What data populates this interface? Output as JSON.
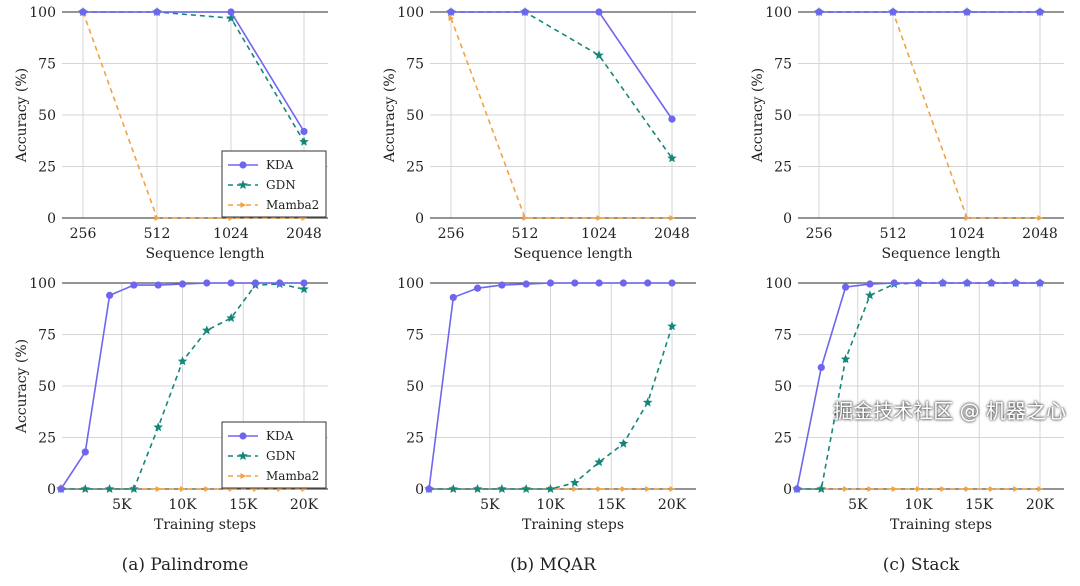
{
  "colors": {
    "KDA": "#6f66f0",
    "GDN": "#15877a",
    "Mamba2": "#f2a244",
    "grid": "#d6d6d6",
    "axis": "#555555"
  },
  "watermark": "掘金技术社区 @ 机器之心",
  "chart_data": [
    {
      "type": "line",
      "panel": "Palindrome",
      "row": "top",
      "xlabel": "Sequence length",
      "ylabel": "Accuracy (%)",
      "categories": [
        "256",
        "512",
        "1024",
        "2048"
      ],
      "yticks": [
        "0",
        "25",
        "50",
        "75",
        "100"
      ],
      "ylim": [
        0,
        100
      ],
      "legend": "bottom-right",
      "series": [
        {
          "name": "KDA",
          "values": [
            100,
            100,
            100,
            42
          ]
        },
        {
          "name": "GDN",
          "values": [
            100,
            100,
            97,
            37
          ]
        },
        {
          "name": "Mamba2",
          "values": [
            100,
            0,
            0,
            0
          ]
        }
      ]
    },
    {
      "type": "line",
      "panel": "MQAR",
      "row": "top",
      "xlabel": "Sequence length",
      "ylabel": "Accuracy (%)",
      "categories": [
        "256",
        "512",
        "1024",
        "2048"
      ],
      "yticks": [
        "0",
        "25",
        "50",
        "75",
        "100"
      ],
      "ylim": [
        0,
        100
      ],
      "series": [
        {
          "name": "KDA",
          "values": [
            100,
            100,
            100,
            48
          ]
        },
        {
          "name": "GDN",
          "values": [
            100,
            100,
            79,
            29
          ]
        },
        {
          "name": "Mamba2",
          "values": [
            97,
            0,
            0,
            0
          ]
        }
      ]
    },
    {
      "type": "line",
      "panel": "Stack",
      "row": "top",
      "xlabel": "Sequence length",
      "ylabel": "Accuracy (%)",
      "categories": [
        "256",
        "512",
        "1024",
        "2048"
      ],
      "yticks": [
        "0",
        "25",
        "50",
        "75",
        "100"
      ],
      "ylim": [
        0,
        100
      ],
      "series": [
        {
          "name": "KDA",
          "values": [
            100,
            100,
            100,
            100
          ]
        },
        {
          "name": "GDN",
          "values": [
            100,
            100,
            100,
            100
          ]
        },
        {
          "name": "Mamba2",
          "values": [
            100,
            100,
            0,
            0
          ]
        }
      ]
    },
    {
      "type": "line",
      "panel": "Palindrome",
      "row": "bottom",
      "caption": "(a) Palindrome",
      "xlabel": "Training steps",
      "ylabel": "Accuracy (%)",
      "x": [
        0,
        2000,
        4000,
        6000,
        8000,
        10000,
        12000,
        14000,
        16000,
        18000,
        20000
      ],
      "xticks": [
        "5K",
        "10K",
        "15K",
        "20K"
      ],
      "xtick_values": [
        5000,
        10000,
        15000,
        20000
      ],
      "yticks": [
        "0",
        "25",
        "50",
        "75",
        "100"
      ],
      "ylim": [
        0,
        100
      ],
      "xlim": [
        0,
        22000
      ],
      "legend": "bottom-right",
      "series": [
        {
          "name": "KDA",
          "values": [
            0,
            18,
            94,
            99,
            99,
            99.5,
            100,
            100,
            100,
            100,
            100
          ]
        },
        {
          "name": "GDN",
          "values": [
            0,
            0,
            0,
            0,
            30,
            62,
            77,
            83,
            99,
            99.5,
            97
          ]
        },
        {
          "name": "Mamba2",
          "values": [
            0,
            0,
            0,
            0,
            0,
            0,
            0,
            0,
            0,
            0,
            0
          ]
        }
      ]
    },
    {
      "type": "line",
      "panel": "MQAR",
      "row": "bottom",
      "caption": "(b) MQAR",
      "xlabel": "Training steps",
      "ylabel": "",
      "x": [
        0,
        2000,
        4000,
        6000,
        8000,
        10000,
        12000,
        14000,
        16000,
        18000,
        20000
      ],
      "xticks": [
        "5K",
        "10K",
        "15K",
        "20K"
      ],
      "xtick_values": [
        5000,
        10000,
        15000,
        20000
      ],
      "yticks": [
        "0",
        "25",
        "50",
        "75",
        "100"
      ],
      "ylim": [
        0,
        100
      ],
      "xlim": [
        0,
        22000
      ],
      "series": [
        {
          "name": "KDA",
          "values": [
            0,
            93,
            97.5,
            99,
            99.5,
            100,
            100,
            100,
            100,
            100,
            100
          ]
        },
        {
          "name": "GDN",
          "values": [
            0,
            0,
            0,
            0,
            0,
            0,
            3,
            13,
            22,
            42,
            79
          ]
        },
        {
          "name": "Mamba2",
          "values": [
            0,
            0,
            0,
            0,
            0,
            0,
            0,
            0,
            0,
            0,
            0
          ]
        }
      ]
    },
    {
      "type": "line",
      "panel": "Stack",
      "row": "bottom",
      "caption": "(c) Stack",
      "xlabel": "Training steps",
      "ylabel": "",
      "x": [
        0,
        2000,
        4000,
        6000,
        8000,
        10000,
        12000,
        14000,
        16000,
        18000,
        20000
      ],
      "xticks": [
        "5K",
        "10K",
        "15K",
        "20K"
      ],
      "xtick_values": [
        5000,
        10000,
        15000,
        20000
      ],
      "yticks": [
        "0",
        "25",
        "50",
        "75",
        "100"
      ],
      "ylim": [
        0,
        100
      ],
      "xlim": [
        0,
        22000
      ],
      "series": [
        {
          "name": "KDA",
          "values": [
            0,
            59,
            98,
            99.5,
            100,
            100,
            100,
            100,
            100,
            100,
            100
          ]
        },
        {
          "name": "GDN",
          "values": [
            0,
            0,
            63,
            94,
            99.5,
            100,
            100,
            100,
            100,
            100,
            100
          ]
        },
        {
          "name": "Mamba2",
          "values": [
            0,
            0,
            0,
            0,
            0,
            0,
            0,
            0,
            0,
            0,
            0
          ]
        }
      ]
    }
  ]
}
